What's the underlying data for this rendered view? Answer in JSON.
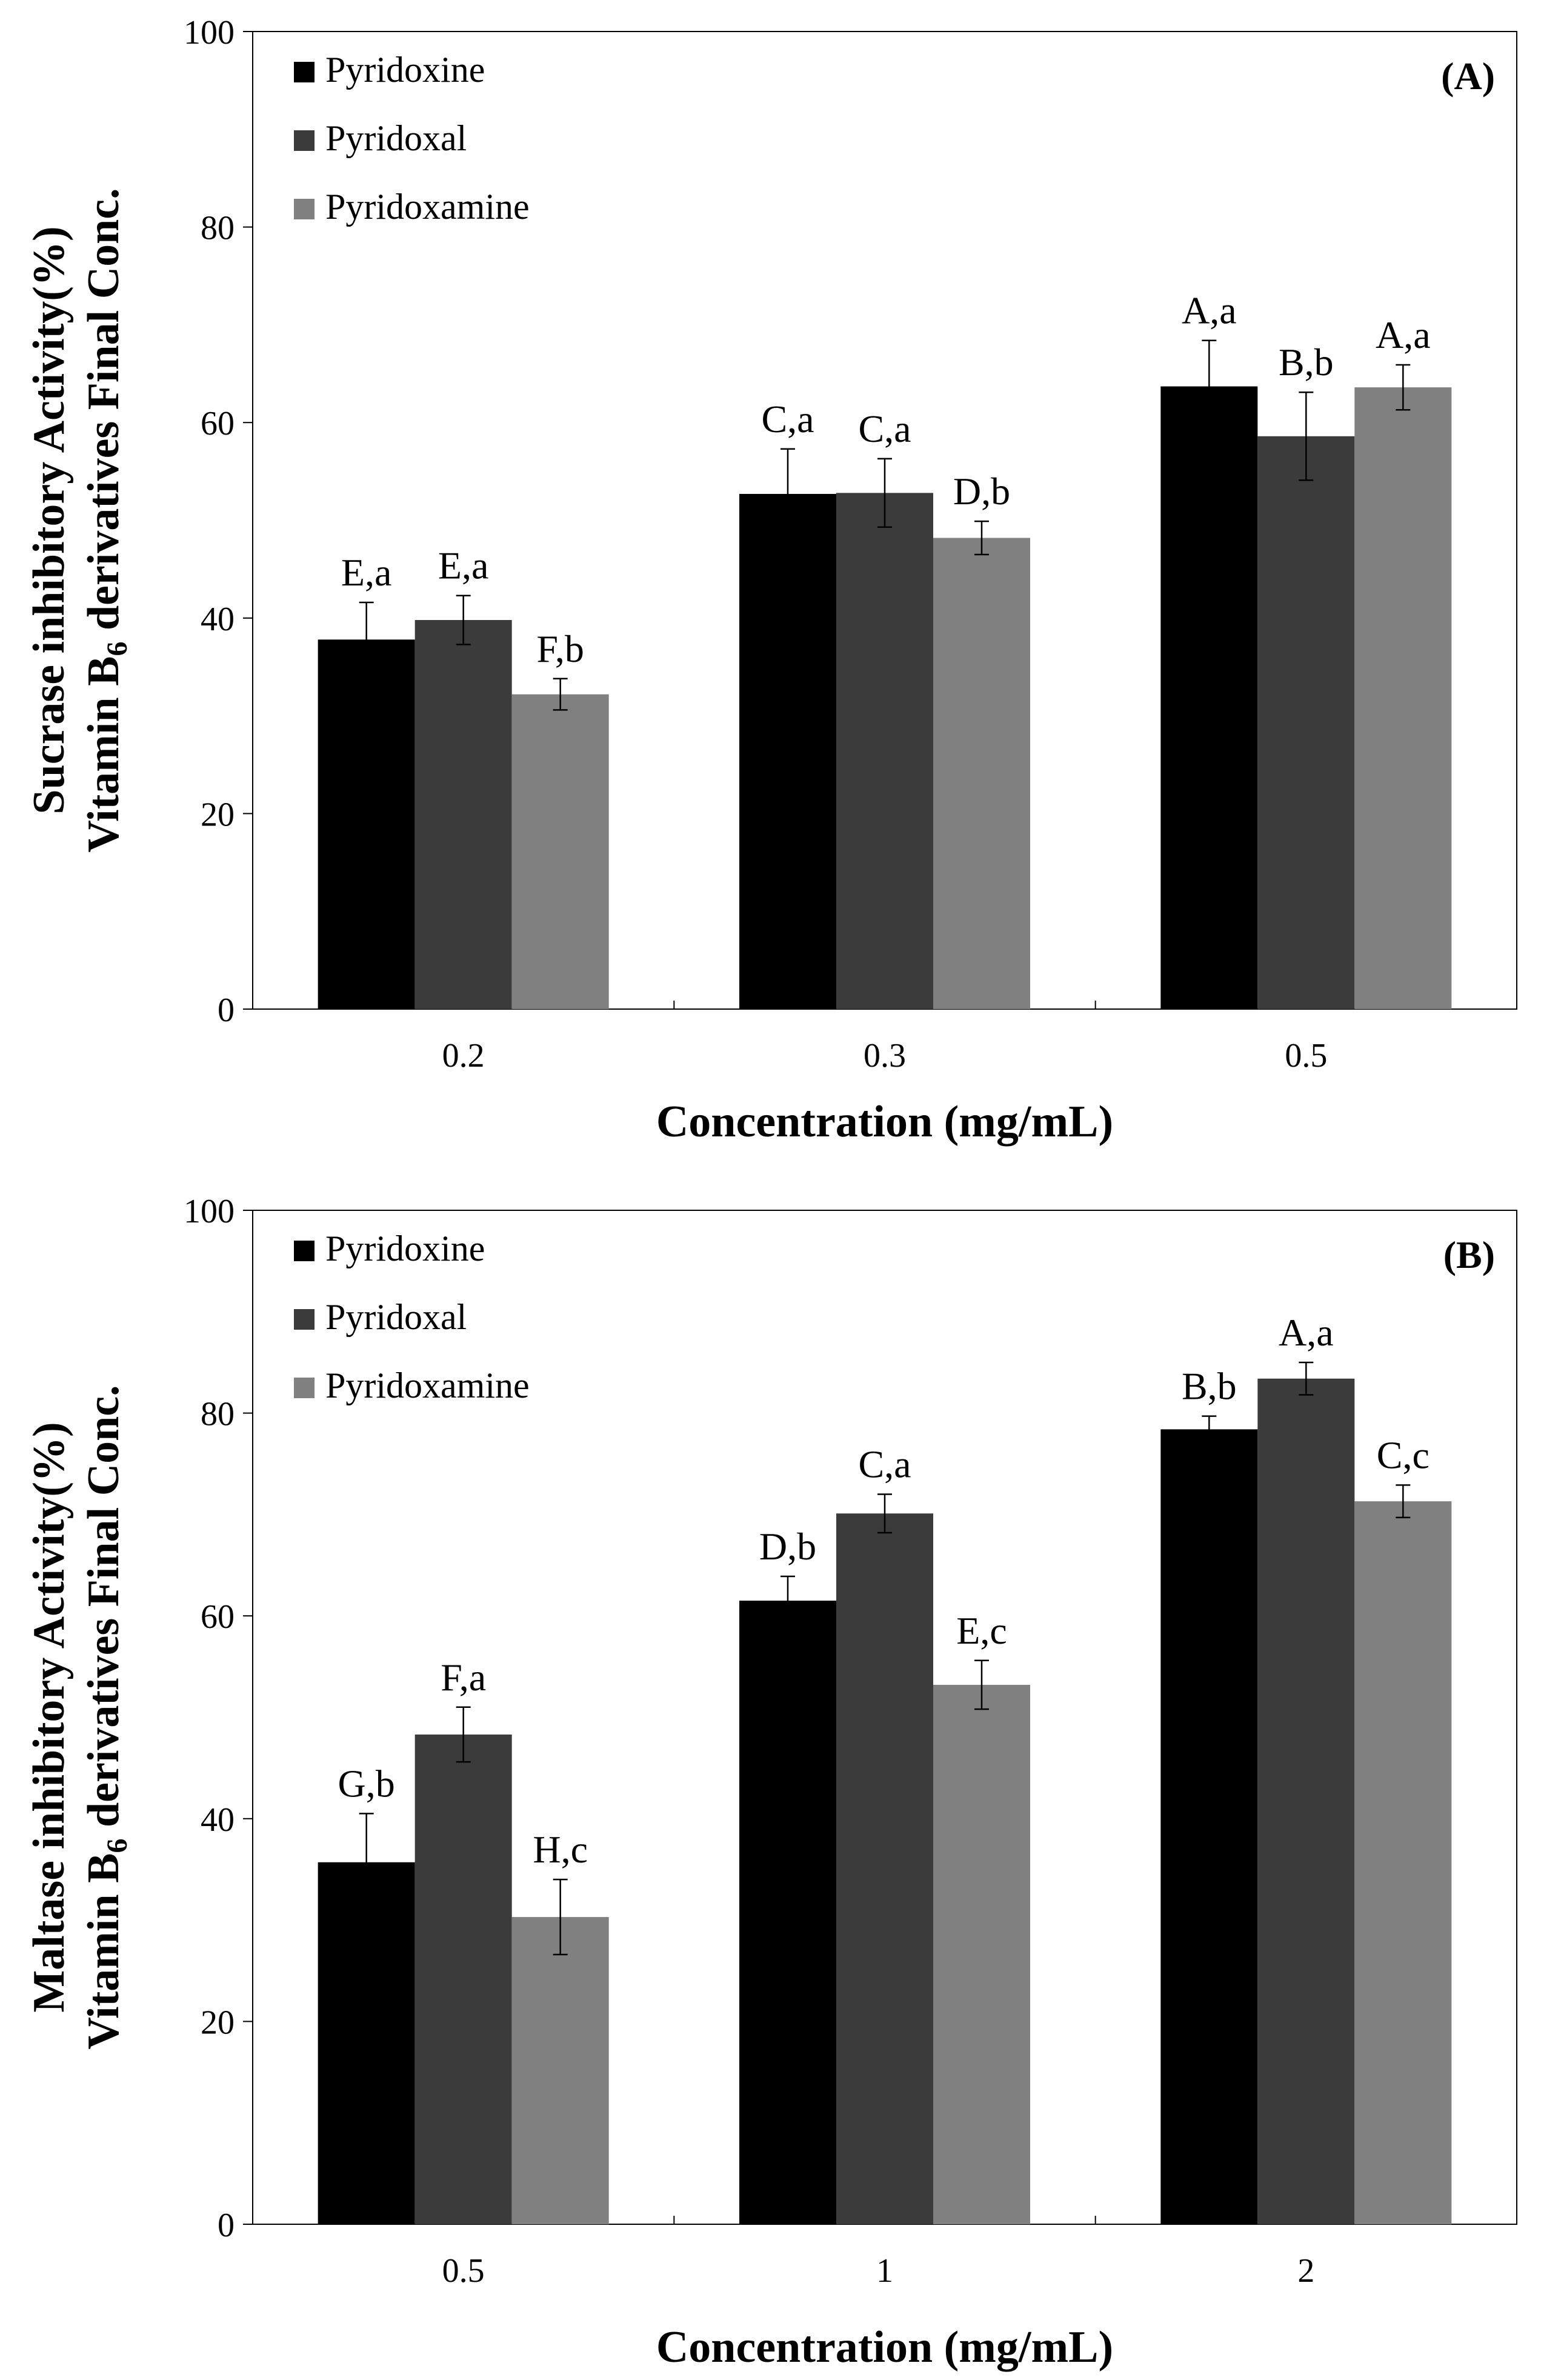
{
  "chart_data": [
    {
      "type": "bar",
      "panel_label": "(A)",
      "xlabel": "Concentration (mg/mL)",
      "ylabel_line1": "Sucrase inhibitory Activity(%)",
      "ylabel_line2_prefix": "Vitamin B",
      "ylabel_line2_subscript": "6",
      "ylabel_line2_suffix": " derivatives Final Conc.",
      "ylim": [
        0,
        100
      ],
      "yticks": [
        "0",
        "20",
        "40",
        "60",
        "80",
        "100"
      ],
      "categories": [
        "0.2",
        "0.3",
        "0.5"
      ],
      "legend_position": "top-left",
      "series": [
        {
          "name": "Pyridoxine",
          "color": "#000000",
          "values": [
            37.8,
            52.7,
            63.7
          ],
          "errors": [
            3.8,
            4.6,
            4.7
          ],
          "labels": [
            "E,a",
            "C,a",
            "A,a"
          ]
        },
        {
          "name": "Pyridoxal",
          "color": "#3b3b3b",
          "values": [
            39.8,
            52.8,
            58.6
          ],
          "errors": [
            2.5,
            3.5,
            4.5
          ],
          "labels": [
            "E,a",
            "C,a",
            "B,b"
          ]
        },
        {
          "name": "Pyridoxamine",
          "color": "#808080",
          "values": [
            32.2,
            48.2,
            63.6
          ],
          "errors": [
            1.6,
            1.7,
            2.3
          ],
          "labels": [
            "F,b",
            "D,b",
            "A,a"
          ]
        }
      ]
    },
    {
      "type": "bar",
      "panel_label": "(B)",
      "xlabel": "Concentration (mg/mL)",
      "ylabel_line1": "Maltase inhibitory Activity(%)",
      "ylabel_line2_prefix": "Vitamin B",
      "ylabel_line2_subscript": "6",
      "ylabel_line2_suffix": " derivatives Final Conc.",
      "ylim": [
        0,
        100
      ],
      "yticks": [
        "0",
        "20",
        "40",
        "60",
        "80",
        "100"
      ],
      "categories": [
        "0.5",
        "1",
        "2"
      ],
      "legend_position": "top-left",
      "series": [
        {
          "name": "Pyridoxine",
          "color": "#000000",
          "values": [
            35.7,
            61.5,
            78.4
          ],
          "errors": [
            4.8,
            2.4,
            1.3
          ],
          "labels": [
            "G,b",
            "D,b",
            "B,b"
          ]
        },
        {
          "name": "Pyridoxal",
          "color": "#3b3b3b",
          "values": [
            48.3,
            70.1,
            83.4
          ],
          "errors": [
            2.7,
            1.9,
            1.6
          ],
          "labels": [
            "F,a",
            "C,a",
            "A,a"
          ]
        },
        {
          "name": "Pyridoxamine",
          "color": "#808080",
          "values": [
            30.3,
            53.2,
            71.3
          ],
          "errors": [
            3.7,
            2.4,
            1.6
          ],
          "labels": [
            "H,c",
            "E,c",
            "C,c"
          ]
        }
      ]
    }
  ]
}
